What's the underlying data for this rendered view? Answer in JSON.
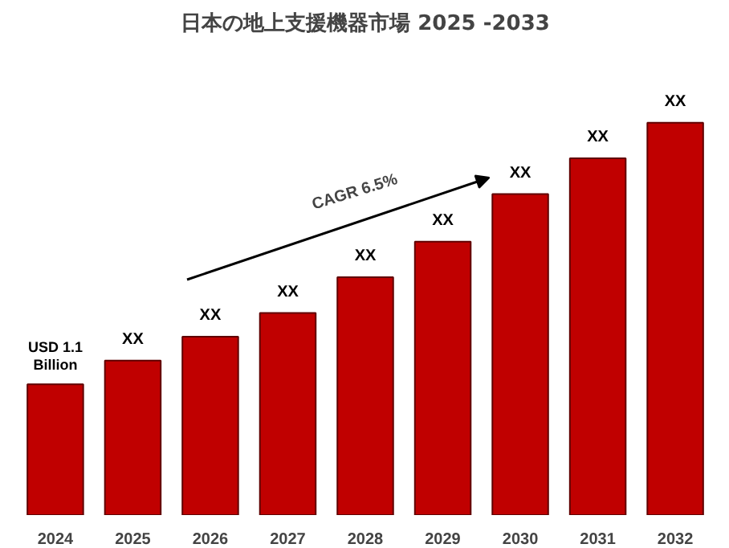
{
  "chart_data": {
    "type": "bar",
    "title": "日本の地上支援機器市場 2025 -2033",
    "categories": [
      "2024",
      "2025",
      "2026",
      "2027",
      "2028",
      "2029",
      "2030",
      "2031",
      "2032"
    ],
    "values": [
      1.1,
      1.3,
      1.5,
      1.7,
      2.0,
      2.3,
      2.7,
      3.0,
      3.3
    ],
    "color": "#c00000",
    "tick_labels": "x",
    "value_labels": [
      "USD 1.1 Billion",
      "XX",
      "XX",
      "XX",
      "XX",
      "XX",
      "XX",
      "XX",
      "XX"
    ],
    "annotations": [
      "CAGR 6.5%"
    ]
  }
}
